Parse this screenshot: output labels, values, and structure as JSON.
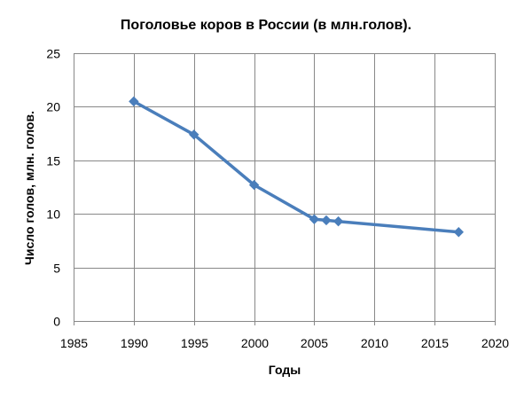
{
  "chart_data": {
    "type": "line",
    "title": "Поголовье коров в России (в млн.голов).",
    "xlabel": "Годы",
    "ylabel": "Число голов, млн. голов.",
    "xlim": [
      1985,
      2020
    ],
    "ylim": [
      0,
      25
    ],
    "x_ticks": [
      1985,
      1990,
      1995,
      2000,
      2005,
      2010,
      2015,
      2020
    ],
    "y_ticks": [
      0,
      5,
      10,
      15,
      20,
      25
    ],
    "grid": true,
    "series": [
      {
        "color": "#4a7ebb",
        "marker": "diamond",
        "x": [
          1990,
          1995,
          2000,
          2005,
          2006,
          2007,
          2017
        ],
        "y": [
          20.5,
          17.4,
          12.7,
          9.5,
          9.4,
          9.3,
          8.3
        ]
      }
    ]
  },
  "colors": {
    "series": "#4a7ebb",
    "grid": "#888888",
    "axis": "#888888"
  }
}
